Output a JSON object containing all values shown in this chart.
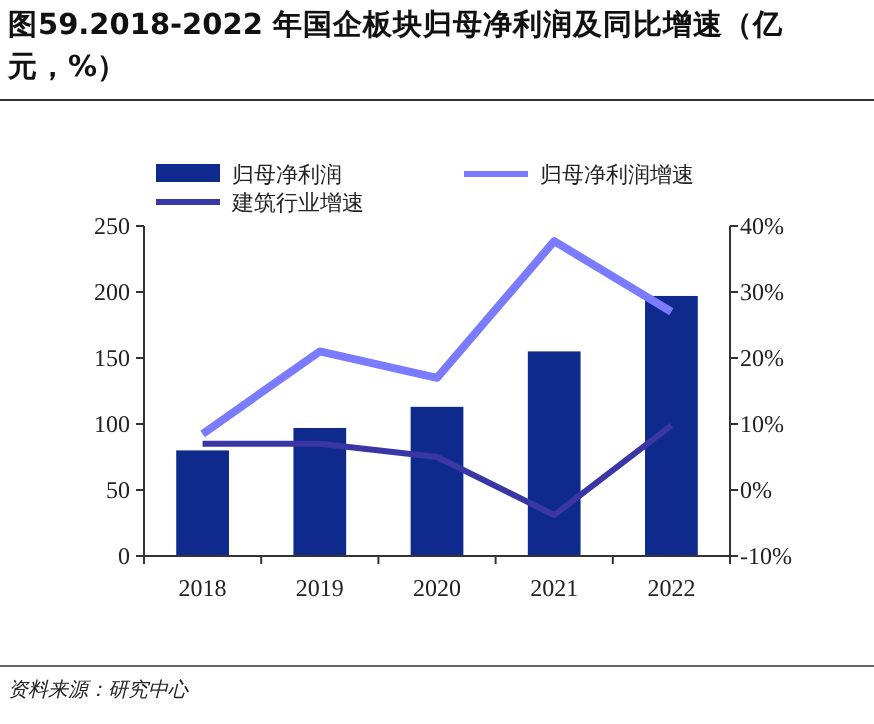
{
  "chart_data": {
    "type": "bar",
    "title": "图59.2018-2022 年国企板块归母净利润及同比增速（亿元，%）",
    "categories": [
      "2018",
      "2019",
      "2020",
      "2021",
      "2022"
    ],
    "series": [
      {
        "name": "归母净利润",
        "color": "#0e2a8c",
        "values": [
          80,
          97,
          113,
          155,
          197
        ]
      },
      {
        "name": "归母净利润增速",
        "type": "line",
        "axis": "y2",
        "color": "#7b7bff",
        "values": [
          8.5,
          21,
          17,
          37.7,
          27
        ]
      },
      {
        "name": "建筑行业增速",
        "type": "line",
        "axis": "y2",
        "color": "#3a36a6",
        "values": [
          7,
          7,
          5,
          -3.8,
          9.8
        ]
      }
    ],
    "ylim": [
      0,
      250
    ],
    "yticks": [
      0,
      50,
      100,
      150,
      200,
      250
    ],
    "y2lim": [
      -10,
      40
    ],
    "y2ticks": [
      {
        "value": -10,
        "label": "-10%"
      },
      {
        "value": 0,
        "label": "0%"
      },
      {
        "value": 10,
        "label": "10%"
      },
      {
        "value": 20,
        "label": "20%"
      },
      {
        "value": 30,
        "label": "30%"
      },
      {
        "value": 40,
        "label": "40%"
      }
    ],
    "legend": "top",
    "grid": false,
    "annotations": [
      "资料来源：研究中心"
    ]
  }
}
